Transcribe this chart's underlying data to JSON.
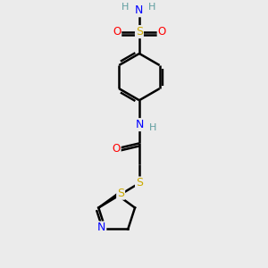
{
  "bg_color": "#ebebeb",
  "atom_colors": {
    "C": "#000000",
    "H": "#5f9ea0",
    "N": "#0000ff",
    "O": "#ff0000",
    "S": "#ccaa00"
  },
  "bond_color": "#000000",
  "bond_width": 1.8
}
